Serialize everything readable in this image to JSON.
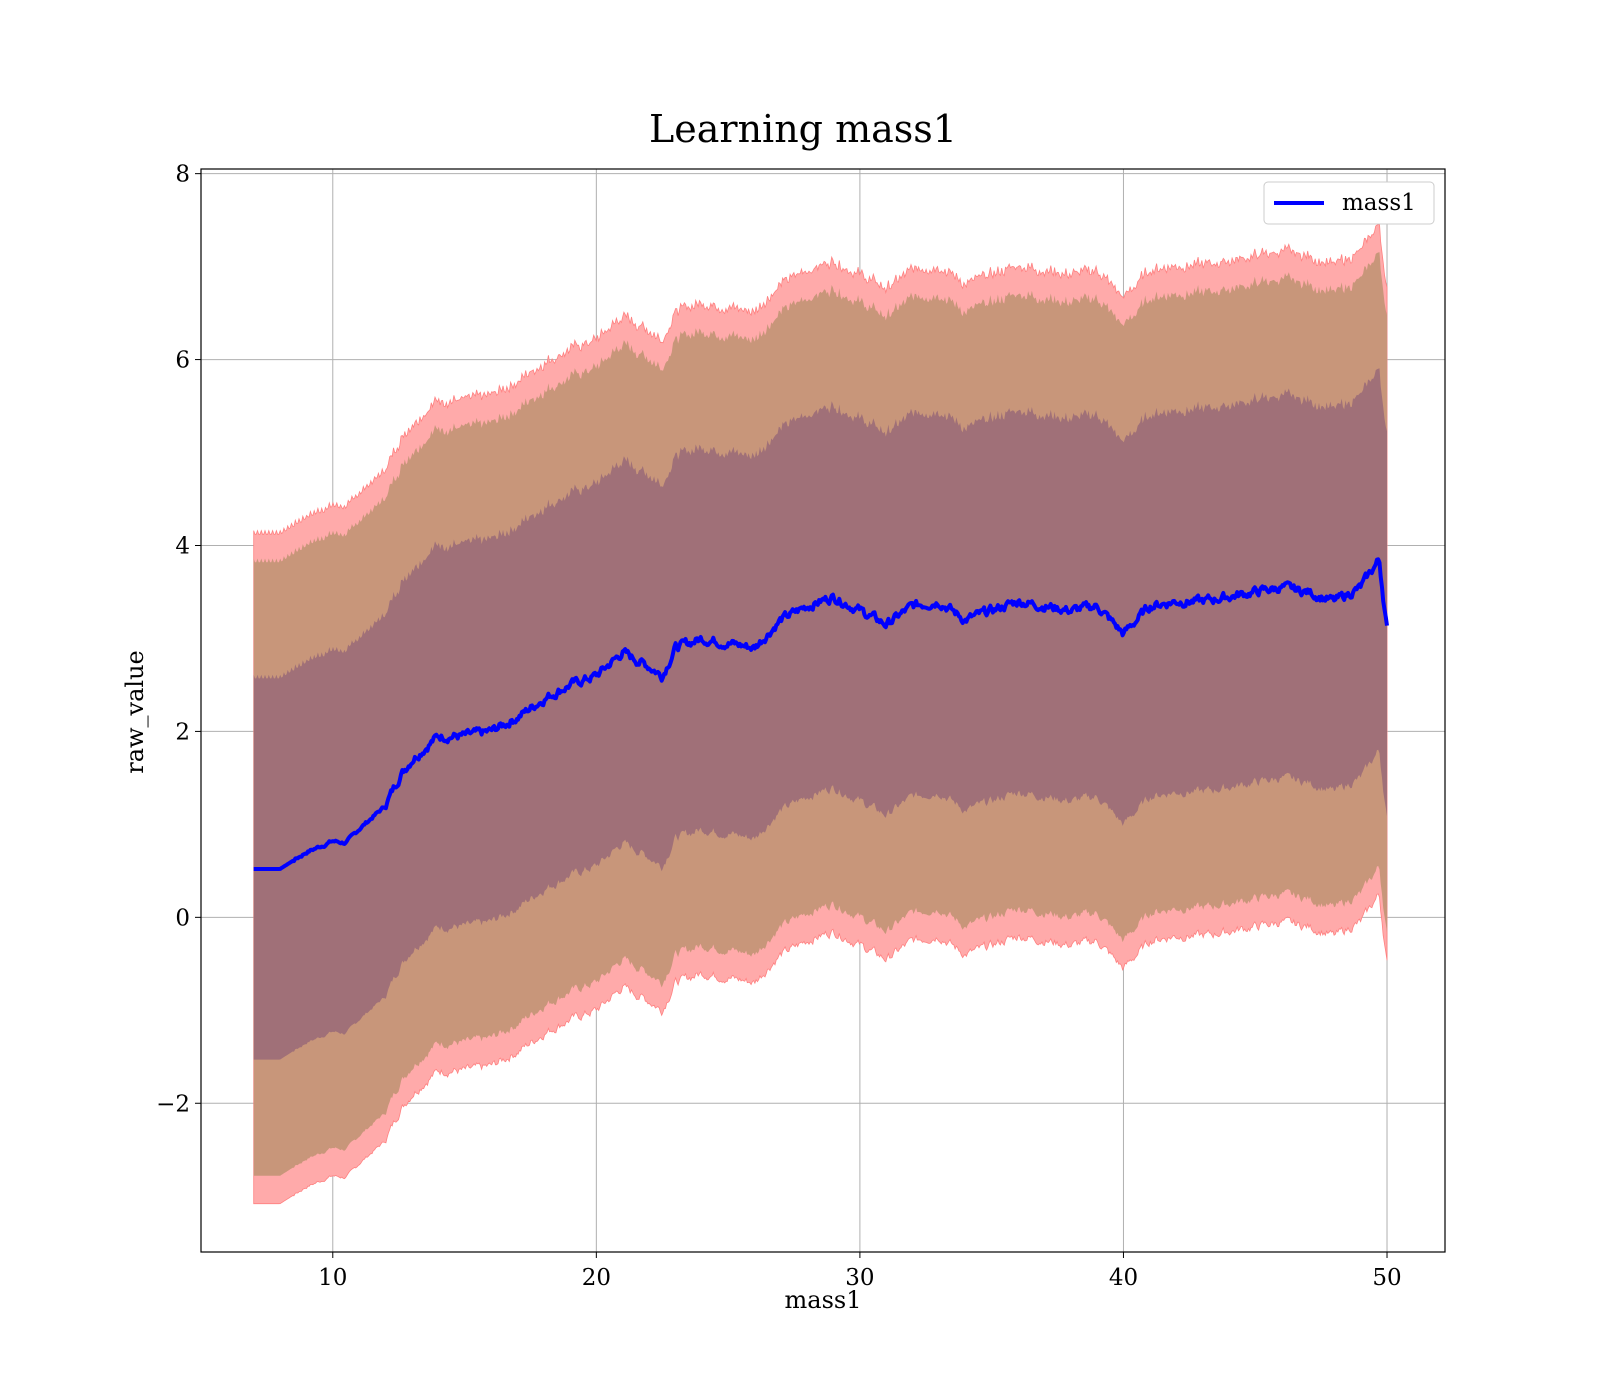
{
  "chart_data": {
    "type": "line",
    "title": "Learning mass1",
    "xlabel": "mass1",
    "ylabel": "raw_value",
    "xlim": [
      5,
      52.2
    ],
    "ylim": [
      -3.6,
      8.05
    ],
    "xticks": [
      10,
      20,
      30,
      40,
      50
    ],
    "xtick_labels": [
      "10",
      "20",
      "30",
      "40",
      "50"
    ],
    "yticks": [
      -2,
      0,
      2,
      4,
      6,
      8
    ],
    "ytick_labels": [
      "−2",
      "0",
      "2",
      "4",
      "6",
      "8"
    ],
    "grid": true,
    "legend": {
      "position": "top-right",
      "entries": [
        "mass1"
      ]
    },
    "colors": {
      "line": "#0000ff",
      "band_outer": "#ffaaaa",
      "band_outer_edge": "#ff8080",
      "band_middle": "#c8967a",
      "band_inner": "#a07078",
      "grid": "#b0b0b0"
    },
    "series": [
      {
        "name": "mass1",
        "x": [
          7,
          8,
          9,
          10,
          10.5,
          11,
          12,
          12.5,
          13,
          14,
          15,
          16,
          17,
          18,
          19,
          20,
          21,
          22,
          22.5,
          23,
          24,
          25,
          26,
          27,
          28,
          29,
          30,
          31,
          32,
          33,
          34,
          35,
          36,
          37,
          38,
          39,
          40,
          41,
          42,
          43,
          44,
          45,
          46,
          47,
          48,
          49,
          49.7,
          50
        ],
        "y": [
          0.52,
          0.52,
          0.7,
          0.82,
          0.8,
          0.95,
          1.2,
          1.5,
          1.7,
          1.95,
          1.95,
          2.0,
          2.15,
          2.35,
          2.5,
          2.6,
          2.85,
          2.7,
          2.6,
          2.9,
          3.0,
          2.95,
          2.9,
          3.2,
          3.35,
          3.45,
          3.3,
          3.15,
          3.35,
          3.4,
          3.2,
          3.3,
          3.4,
          3.35,
          3.3,
          3.35,
          3.05,
          3.35,
          3.4,
          3.4,
          3.45,
          3.5,
          3.55,
          3.5,
          3.4,
          3.55,
          3.85,
          3.1
        ]
      }
    ],
    "bands": [
      {
        "level": "outer",
        "lower_offset": -3.6,
        "upper_offset": 3.6
      },
      {
        "level": "middle",
        "lower_offset": -3.3,
        "upper_offset": 3.3
      },
      {
        "level": "inner",
        "lower_offset": -2.05,
        "upper_offset": 2.05
      }
    ]
  }
}
